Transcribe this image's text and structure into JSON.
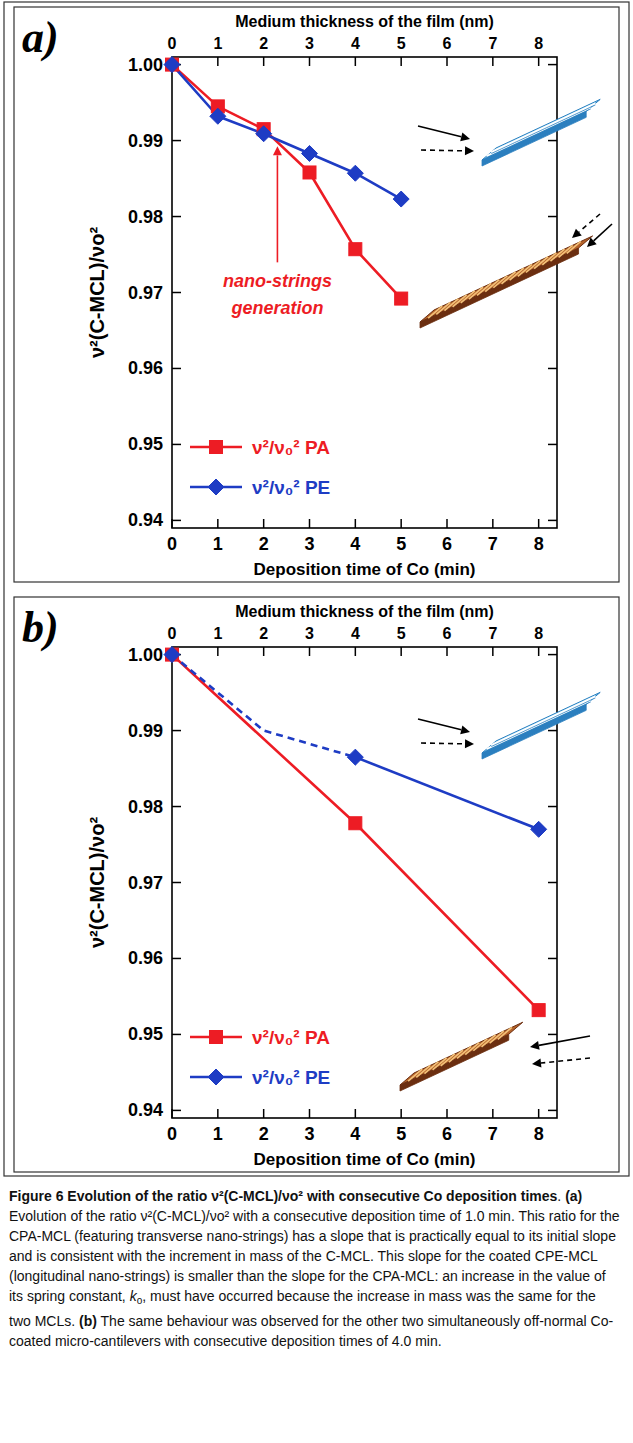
{
  "chart_data": [
    {
      "type": "line",
      "panel_label": "a)",
      "x_label": "Deposition time of Co (min)",
      "x2_label": "Medium thickness of the film (nm)",
      "y_label": "ν²(C-MCL)/νo²",
      "xlim": [
        0,
        8.4
      ],
      "xticks": [
        0,
        1,
        2,
        3,
        4,
        5,
        6,
        7,
        8
      ],
      "x2lim": [
        0,
        8.4
      ],
      "x2ticks": [
        0,
        1,
        2,
        3,
        4,
        5,
        6,
        7,
        8
      ],
      "ylim": [
        0.939,
        1.001
      ],
      "yticks": [
        0.94,
        0.95,
        0.96,
        0.97,
        0.98,
        0.99,
        {
          "value": 1,
          "label": "1.00"
        }
      ],
      "grid": false,
      "legend": "lower left",
      "series": [
        {
          "name": "ν²/ν₀² PA",
          "color": "#ed1c24",
          "marker": "square",
          "line_style": "solid",
          "x": [
            0,
            1,
            2,
            3,
            4,
            5
          ],
          "values": [
            1.0,
            0.9945,
            0.9915,
            0.9858,
            0.9757,
            0.9692
          ]
        },
        {
          "name": "ν²/ν₀² PE",
          "color": "#1e3cc4",
          "marker": "diamond",
          "line_style": "solid",
          "x": [
            0,
            1,
            2,
            3,
            4,
            5
          ],
          "values": [
            1.0,
            0.9932,
            0.9909,
            0.9883,
            0.9857,
            0.9823
          ]
        }
      ],
      "annotations": [
        {
          "text": "nano-strings generation",
          "x": 2.3,
          "y": 0.9895,
          "color": "#ed1c24"
        }
      ]
    },
    {
      "type": "line",
      "panel_label": "b)",
      "x_label": "Deposition time of Co (min)",
      "x2_label": "Medium thickness of the film (nm)",
      "y_label": "ν²(C-MCL)/νo²",
      "xlim": [
        0,
        8.4
      ],
      "xticks": [
        0,
        1,
        2,
        3,
        4,
        5,
        6,
        7,
        8
      ],
      "x2lim": [
        0,
        8.4
      ],
      "x2ticks": [
        0,
        1,
        2,
        3,
        4,
        5,
        6,
        7,
        8
      ],
      "ylim": [
        0.939,
        1.001
      ],
      "yticks": [
        0.94,
        0.95,
        0.96,
        0.97,
        0.98,
        0.99,
        {
          "value": 1,
          "label": "1.00"
        }
      ],
      "grid": false,
      "legend": "lower left",
      "series": [
        {
          "name": "ν²/ν₀² PA",
          "color": "#ed1c24",
          "marker": "square",
          "line_style": "solid",
          "x": [
            0,
            4,
            8
          ],
          "values": [
            1.0,
            0.9778,
            0.9532
          ]
        },
        {
          "name": "ν²/ν₀² PE",
          "color": "#1e3cc4",
          "marker": "diamond",
          "line_style": "solid",
          "x": [
            0,
            2,
            4,
            8
          ],
          "values": [
            1.0,
            null,
            0.9865,
            0.977
          ]
        },
        {
          "color": "#1e3cc4",
          "marker": "none",
          "line_style": "dashed",
          "x": [
            0,
            2,
            4
          ],
          "values": [
            1.0,
            0.99,
            0.9865
          ]
        }
      ]
    }
  ],
  "caption": [
    {
      "text": "Figure 6 Evolution of the ratio ν²(C-MCL)/νo² with consecutive Co deposition times",
      "style": "bold"
    },
    {
      "text": ". ",
      "style": "normal"
    },
    {
      "text": "(a)",
      "style": "bold"
    },
    {
      "text": " Evolution of the ratio ν²(C-MCL)/νo² with a consecutive deposition time of 1.0 min. This ratio for the CPA-MCL (featuring transverse nano-strings) has a slope that is practically equal to its initial slope and is consistent with the increment in mass of the C-MCL. This slope for the coated CPE-MCL (longitudinal nano-strings) is smaller than the slope for the CPA-MCL: an increase in the value of its spring constant, ",
      "style": "normal"
    },
    {
      "text": "k",
      "style": "italic"
    },
    {
      "text": "o",
      "style": "sub"
    },
    {
      "text": ", must have occurred because the increase in mass was the same for the two MCLs. ",
      "style": "normal"
    },
    {
      "text": "(b)",
      "style": "bold"
    },
    {
      "text": " The same behaviour was observed for the other two simultaneously off-normal Co-coated micro-cantilevers with consecutive deposition times of 4.0 min.",
      "style": "normal"
    }
  ]
}
